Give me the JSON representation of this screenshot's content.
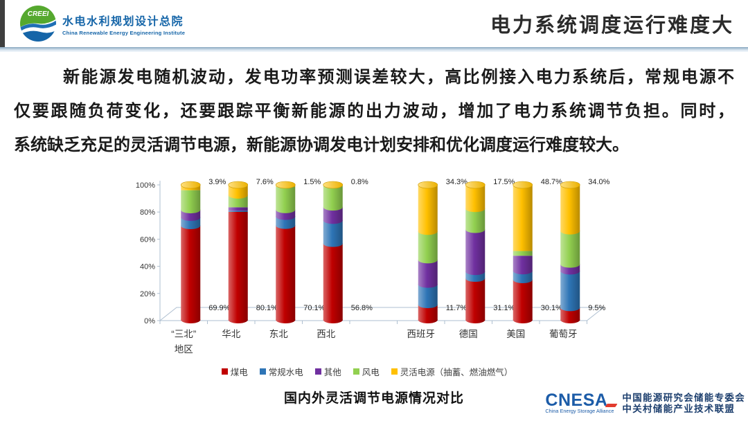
{
  "header": {
    "logo": {
      "acronym": "CREEI",
      "org_cn": "水电水利规划设计总院",
      "org_en": "China Renewable Energy Engineering Institute"
    },
    "slide_title": "电力系统调度运行难度大"
  },
  "body": {
    "paragraph_lines": [
      "新能源发电随机波动，发电功率预测误差较大，高比例接入电力系统后，常规电源不",
      "仅要跟随负荷变化，还要跟踪平衡新能源的出力波动，增加了电力系统调节负担。同时，",
      "系统缺乏充足的灵活调节电源，新能源协调发电计划安排和优化调度运行难度较大。"
    ]
  },
  "chart_data": {
    "type": "bar",
    "stacked": true,
    "style": "3d-cylinder",
    "title": "国内外灵活调节电源情况对比",
    "xlabel": "",
    "ylabel": "",
    "ylim": [
      0,
      100
    ],
    "y_ticks": [
      "0%",
      "20%",
      "40%",
      "60%",
      "80%",
      "100%"
    ],
    "grid": false,
    "legend_position": "bottom",
    "categories": [
      "“三北”地区",
      "华北",
      "东北",
      "西北",
      "西班牙",
      "德国",
      "美国",
      "葡萄牙"
    ],
    "category_lines": [
      [
        "“三北”",
        "地区"
      ],
      [
        "华北"
      ],
      [
        "东北"
      ],
      [
        "西北"
      ],
      [
        "西班牙"
      ],
      [
        "德国"
      ],
      [
        "美国"
      ],
      [
        "葡萄牙"
      ]
    ],
    "gap_after_index": 3,
    "series": [
      {
        "name": "煤电",
        "color": "#C00000",
        "values": [
          69.9,
          80.1,
          70.1,
          56.8,
          11.7,
          31.1,
          30.1,
          9.5
        ]
      },
      {
        "name": "常规水电",
        "color": "#2E75B6",
        "values": [
          6.1,
          0.9,
          6.6,
          17.0,
          15.0,
          5.0,
          6.5,
          27.0
        ]
      },
      {
        "name": "其他",
        "color": "#7030A0",
        "values": [
          5.6,
          2.5,
          5.0,
          9.8,
          18.0,
          31.0,
          11.2,
          5.0
        ]
      },
      {
        "name": "风电",
        "color": "#92D050",
        "values": [
          14.5,
          8.9,
          16.8,
          15.6,
          21.0,
          15.4,
          3.5,
          24.5
        ]
      },
      {
        "name": "灵活电源（抽蓄、燃油燃气）",
        "color": "#FFC000",
        "values": [
          3.9,
          7.6,
          1.5,
          0.8,
          34.3,
          17.5,
          48.7,
          34.0
        ]
      }
    ],
    "top_labels": [
      "3.9%",
      "7.6%",
      "1.5%",
      "0.8%",
      "34.3%",
      "17.5%",
      "48.7%",
      "34.0%"
    ],
    "bottom_labels": [
      "69.9%",
      "80.1%",
      "70.1%",
      "56.8%",
      "11.7%",
      "31.1%",
      "30.1%",
      "9.5%"
    ]
  },
  "footer": {
    "cnesa": {
      "wordmark": "CNESA",
      "subtitle": "China Energy Storage Alliance",
      "org_line1": "中国能源研究会储能专委会",
      "org_line2": "中关村储能产业技术联盟"
    }
  }
}
